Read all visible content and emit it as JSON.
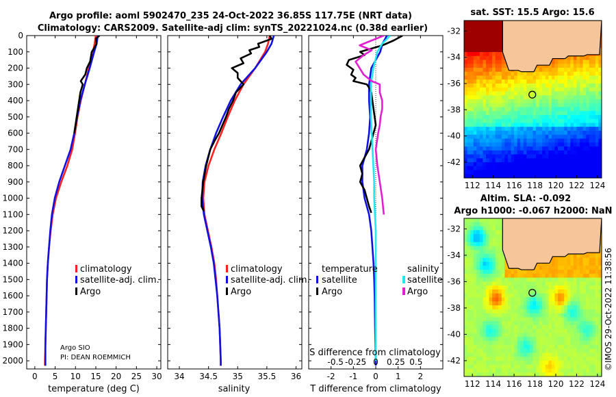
{
  "title": {
    "line1": "Argo profile: aoml 5902470_235 24-Oct-2022 36.85S 117.75E (NRT data)",
    "line2": "Climatology: CARS2009. Satellite-adj clim: synTS_20221024.nc (0.38d earlier)"
  },
  "colors": {
    "climatology": "#ff2020",
    "satellite": "#1010e0",
    "argo": "#000000",
    "sat_salinity": "#20e8f0",
    "argo_salinity": "#e020d0",
    "land": "#f7c59a"
  },
  "chart_data": [
    {
      "type": "line",
      "name": "temperature-panel",
      "xlabel": "temperature (deg C)",
      "xlim": [
        -2,
        31
      ],
      "ylim": [
        2050,
        0
      ],
      "xticks": [
        0,
        5,
        10,
        15,
        20,
        25,
        30
      ],
      "yticks": [
        0,
        100,
        200,
        300,
        400,
        500,
        600,
        700,
        800,
        900,
        1000,
        1100,
        1200,
        1300,
        1400,
        1500,
        1600,
        1700,
        1800,
        1900,
        2000
      ],
      "legend": [
        "climatology",
        "satellite-adj. clim.",
        "Argo"
      ],
      "annotation": [
        "Argo SIO",
        "PI: DEAN ROEMMICH"
      ],
      "series": [
        {
          "name": "climatology",
          "color": "#ff2020",
          "depth": [
            0,
            50,
            100,
            200,
            300,
            400,
            500,
            600,
            700,
            800,
            900,
            1000,
            1100,
            1200,
            1300,
            1400,
            1500,
            1600,
            1700,
            1800,
            1900,
            2000,
            2030
          ],
          "values": [
            15.0,
            14.7,
            14.3,
            13.3,
            12.3,
            11.3,
            10.5,
            9.9,
            9.2,
            8.0,
            6.5,
            5.2,
            4.4,
            3.9,
            3.5,
            3.2,
            3.0,
            2.9,
            2.8,
            2.7,
            2.6,
            2.5,
            2.5
          ]
        },
        {
          "name": "satellite-adj. clim.",
          "color": "#1010e0",
          "depth": [
            0,
            50,
            100,
            200,
            300,
            400,
            500,
            600,
            700,
            800,
            900,
            1000,
            1100,
            1200,
            1300,
            1400,
            1500,
            1600,
            1700,
            1800,
            1900,
            2000,
            2030
          ],
          "values": [
            15.5,
            15.2,
            14.6,
            13.5,
            12.3,
            11.2,
            10.4,
            9.7,
            8.8,
            7.4,
            6.0,
            4.9,
            4.2,
            3.8,
            3.5,
            3.2,
            3.0,
            2.9,
            2.8,
            2.7,
            2.6,
            2.6,
            2.6
          ]
        },
        {
          "name": "Argo",
          "color": "#000000",
          "depth": [
            0,
            20,
            50,
            80,
            100,
            130,
            160,
            200,
            240,
            280,
            300,
            350,
            400,
            450,
            500,
            550,
            600
          ],
          "values": [
            15.9,
            15.0,
            15.2,
            14.5,
            14.0,
            13.8,
            13.6,
            12.8,
            12.4,
            11.3,
            11.8,
            11.2,
            10.9,
            10.6,
            10.3,
            10.0,
            9.7
          ]
        }
      ]
    },
    {
      "type": "line",
      "name": "salinity-panel",
      "xlabel": "salinity",
      "xlim": [
        33.8,
        36.1
      ],
      "ylim": [
        2050,
        0
      ],
      "xticks": [
        34,
        34.5,
        35,
        35.5,
        36
      ],
      "legend": [
        "climatology",
        "satellite-adj. clim.",
        "Argo"
      ],
      "series": [
        {
          "name": "climatology",
          "color": "#ff2020",
          "depth": [
            0,
            50,
            100,
            200,
            300,
            400,
            500,
            600,
            700,
            800,
            900,
            1000,
            1100,
            1200,
            1300,
            1400,
            1500,
            1600,
            1700,
            1800,
            1900,
            2000,
            2030
          ],
          "values": [
            35.55,
            35.52,
            35.47,
            35.3,
            35.1,
            34.95,
            34.83,
            34.72,
            34.6,
            34.5,
            34.43,
            34.41,
            34.43,
            34.49,
            34.55,
            34.6,
            34.63,
            34.65,
            34.67,
            34.69,
            34.7,
            34.71,
            34.71
          ]
        },
        {
          "name": "satellite-adj. clim.",
          "color": "#1010e0",
          "depth": [
            0,
            50,
            100,
            200,
            300,
            400,
            500,
            600,
            700,
            800,
            900,
            1000,
            1100,
            1200,
            1300,
            1400,
            1500,
            1600,
            1700,
            1800,
            1900,
            2000,
            2030
          ],
          "values": [
            35.62,
            35.58,
            35.5,
            35.3,
            35.05,
            34.88,
            34.75,
            34.63,
            34.53,
            34.45,
            34.4,
            34.39,
            34.42,
            34.48,
            34.54,
            34.59,
            34.62,
            34.65,
            34.67,
            34.69,
            34.7,
            34.71,
            34.71
          ]
        },
        {
          "name": "Argo",
          "color": "#000000",
          "depth": [
            0,
            20,
            50,
            70,
            90,
            110,
            140,
            170,
            200,
            230,
            260,
            300,
            350,
            400,
            450,
            500,
            550,
            600,
            650,
            700,
            800,
            900,
            1000,
            1050,
            1080
          ],
          "values": [
            35.55,
            35.58,
            35.35,
            35.37,
            35.2,
            35.23,
            35.05,
            35.1,
            34.9,
            35.0,
            35.0,
            35.1,
            34.97,
            34.92,
            34.85,
            34.8,
            34.74,
            34.68,
            34.6,
            34.53,
            34.46,
            34.41,
            34.38,
            34.38,
            34.42
          ]
        }
      ]
    },
    {
      "type": "line",
      "name": "difference-panel",
      "xlabel": "T difference from climatology",
      "top_xlabel": "S difference from climatology",
      "xlim": [
        -3,
        3
      ],
      "ylim": [
        2050,
        0
      ],
      "xticks": [
        -2,
        -1,
        0,
        1,
        2
      ],
      "top_xticks": [
        -0.5,
        -0.25,
        0,
        0.25,
        0.5
      ],
      "legend_temperature": [
        "temperature",
        "satellite",
        "Argo"
      ],
      "legend_salinity": [
        "salinity",
        "satellite",
        "Argo"
      ],
      "series": [
        {
          "name": "temperature satellite",
          "color": "#1010e0",
          "depth": [
            0,
            50,
            100,
            200,
            300,
            400,
            500,
            600,
            700,
            800,
            900,
            1000,
            1100,
            1200,
            1300,
            1400,
            1500,
            1600,
            1800,
            2000,
            2030
          ],
          "values": [
            0.5,
            0.3,
            0.2,
            -0.2,
            -0.3,
            -0.3,
            -0.25,
            -0.3,
            -0.4,
            -0.6,
            -0.6,
            -0.5,
            -0.3,
            -0.2,
            -0.15,
            -0.1,
            -0.07,
            -0.05,
            -0.03,
            0.0,
            0.0
          ]
        },
        {
          "name": "temperature Argo",
          "color": "#000000",
          "depth": [
            0,
            30,
            60,
            80,
            100,
            120,
            150,
            180,
            210,
            240,
            260,
            280,
            300,
            320,
            350,
            400,
            450,
            500,
            550,
            600,
            650,
            700,
            750,
            800,
            850,
            900,
            950,
            1000,
            1050,
            1090
          ],
          "values": [
            1.2,
            0.8,
            0.3,
            -0.2,
            -0.7,
            -0.5,
            -1.2,
            -1.3,
            -1.0,
            -1.1,
            -0.9,
            -1.0,
            -0.4,
            -0.3,
            -0.2,
            -0.15,
            -0.1,
            -0.05,
            0.0,
            -0.1,
            -0.2,
            -0.3,
            -0.5,
            -0.7,
            -0.6,
            -0.7,
            -0.5,
            -0.4,
            -0.3,
            -0.2
          ]
        },
        {
          "name": "salinity satellite",
          "color": "#20e8f0",
          "depth": [
            0,
            50,
            100,
            200,
            300,
            400,
            500,
            600,
            700,
            800,
            900,
            1000,
            1100,
            1200,
            1400,
            1600,
            1800,
            2000
          ],
          "values": [
            0.18,
            0.08,
            0.02,
            -0.03,
            -0.06,
            -0.06,
            -0.06,
            -0.05,
            -0.04,
            -0.03,
            -0.02,
            -0.02,
            -0.01,
            0.0,
            0.0,
            0.0,
            0.0,
            0.0
          ]
        },
        {
          "name": "salinity Argo",
          "color": "#e020d0",
          "depth": [
            0,
            40,
            60,
            90,
            120,
            160,
            200,
            240,
            280,
            300,
            350,
            400,
            450,
            500,
            550,
            600,
            700,
            800,
            900,
            1000,
            1100
          ],
          "values": [
            0.1,
            -0.1,
            -0.2,
            -0.05,
            -0.15,
            -0.25,
            -0.2,
            -0.15,
            -0.05,
            0.05,
            0.05,
            0.08,
            0.08,
            0.06,
            0.05,
            0.03,
            0.0,
            0.02,
            0.05,
            0.08,
            0.1
          ]
        }
      ]
    },
    {
      "type": "heatmap",
      "name": "sst-map",
      "title": "sat. SST: 15.5 Argo: 15.6",
      "xticks": [
        112,
        114,
        116,
        118,
        120,
        122,
        124
      ],
      "yticks": [
        -32,
        -34,
        -36,
        -38,
        -40,
        -42
      ],
      "xlim": [
        111.2,
        124.4
      ],
      "ylim": [
        -43.2,
        -31.2
      ],
      "marker": {
        "lon": 117.75,
        "lat": -36.85
      }
    },
    {
      "type": "heatmap",
      "name": "sla-map",
      "title_line1": "Altim. SLA: -0.092",
      "title_line2": "Argo h1000: -0.067 h2000: NaN",
      "xticks": [
        112,
        114,
        116,
        118,
        120,
        122,
        124
      ],
      "yticks": [
        -32,
        -34,
        -36,
        -38,
        -40,
        -42
      ],
      "xlim": [
        111.2,
        124.4
      ],
      "ylim": [
        -43.2,
        -31.2
      ],
      "marker": {
        "lon": 117.75,
        "lat": -36.85
      }
    }
  ],
  "credit": "©IMOS 29-Oct-2022 11:38:56"
}
